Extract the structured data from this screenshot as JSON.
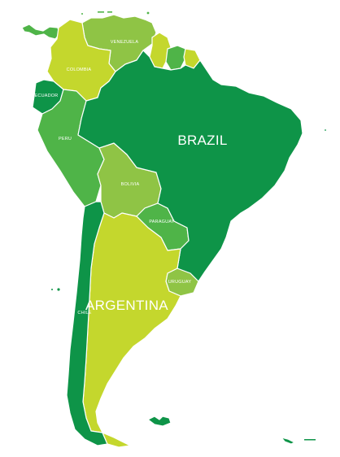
{
  "colors": {
    "dark_green": "#0e9448",
    "medium_green": "#4fb448",
    "light_green": "#8fc445",
    "yellow_green": "#c4d72d",
    "background": "#ffffff"
  },
  "countries": {
    "brazil": {
      "label": "BRAZIL",
      "color_key": "dark_green"
    },
    "argentina": {
      "label": "ARGENTINA",
      "color_key": "yellow_green"
    },
    "chile": {
      "label": "CHILE",
      "color_key": "dark_green"
    },
    "peru": {
      "label": "PERU",
      "color_key": "medium_green"
    },
    "bolivia": {
      "label": "BOLIVIA",
      "color_key": "light_green"
    },
    "colombia": {
      "label": "COLOMBIA",
      "color_key": "yellow_green"
    },
    "venezuela": {
      "label": "VENEZUELA",
      "color_key": "light_green"
    },
    "ecuador": {
      "label": "ECUADOR",
      "color_key": "dark_green"
    },
    "paraguay": {
      "label": "PARAGUAY",
      "color_key": "medium_green"
    },
    "uruguay": {
      "label": "URUGUAY",
      "color_key": "light_green"
    },
    "guyana": {
      "label": "",
      "color_key": "yellow_green"
    },
    "suriname": {
      "label": "",
      "color_key": "medium_green"
    },
    "french_guiana": {
      "label": "",
      "color_key": "yellow_green"
    },
    "panama": {
      "label": "",
      "color_key": "medium_green"
    },
    "falklands": {
      "label": "",
      "color_key": "dark_green"
    },
    "south_georgia": {
      "label": "",
      "color_key": "dark_green"
    }
  }
}
